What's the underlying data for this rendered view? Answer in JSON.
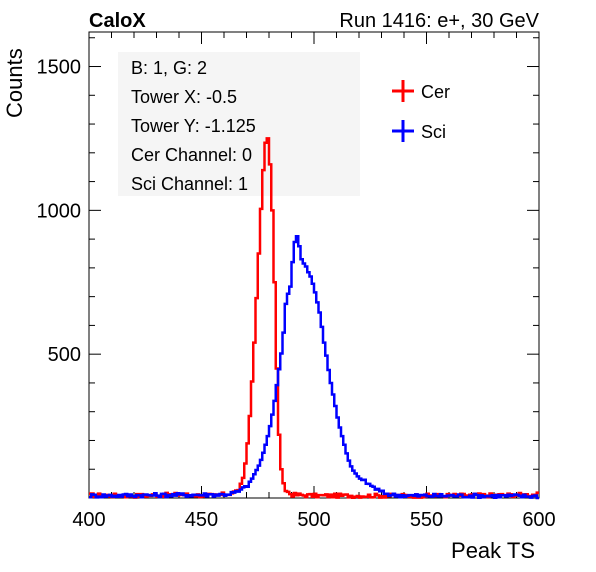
{
  "header": {
    "experiment": "CaloX",
    "run_info": "Run 1416: e+, 30 GeV"
  },
  "info_box": {
    "lines": [
      "B: 1, G: 2",
      "Tower X: -0.5",
      "Tower Y: -1.125",
      "Cer Channel: 0",
      "Sci Channel: 1"
    ]
  },
  "chart_data": {
    "type": "line",
    "style": "histogram-step",
    "xlabel": "Peak TS",
    "ylabel": "Counts",
    "xlim": [
      400,
      600
    ],
    "ylim": [
      0,
      1620
    ],
    "xticks": [
      400,
      450,
      500,
      550,
      600
    ],
    "yticks": [
      500,
      1000,
      1500
    ],
    "grid": false,
    "legend_position": "top-right",
    "bin_width": 1,
    "series": [
      {
        "name": "Cer",
        "color": "#ff0000",
        "points": [
          [
            400,
            10
          ],
          [
            420,
            8
          ],
          [
            440,
            12
          ],
          [
            455,
            8
          ],
          [
            462,
            14
          ],
          [
            466,
            25
          ],
          [
            468,
            50
          ],
          [
            469,
            90
          ],
          [
            470,
            150
          ],
          [
            471,
            230
          ],
          [
            472,
            340
          ],
          [
            473,
            470
          ],
          [
            474,
            610
          ],
          [
            475,
            780
          ],
          [
            476,
            920
          ],
          [
            477,
            1090
          ],
          [
            478,
            1190
          ],
          [
            479,
            1280
          ],
          [
            480,
            1220
          ],
          [
            481,
            1100
          ],
          [
            482,
            900
          ],
          [
            483,
            600
          ],
          [
            484,
            300
          ],
          [
            485,
            140
          ],
          [
            486,
            60
          ],
          [
            487,
            30
          ],
          [
            490,
            12
          ],
          [
            500,
            8
          ],
          [
            520,
            8
          ],
          [
            550,
            8
          ],
          [
            580,
            10
          ],
          [
            600,
            12
          ]
        ]
      },
      {
        "name": "Sci",
        "color": "#0000ff",
        "points": [
          [
            400,
            8
          ],
          [
            430,
            10
          ],
          [
            460,
            12
          ],
          [
            466,
            20
          ],
          [
            470,
            40
          ],
          [
            472,
            60
          ],
          [
            474,
            90
          ],
          [
            476,
            120
          ],
          [
            478,
            170
          ],
          [
            480,
            230
          ],
          [
            482,
            310
          ],
          [
            484,
            420
          ],
          [
            486,
            530
          ],
          [
            487,
            620
          ],
          [
            488,
            730
          ],
          [
            489,
            690
          ],
          [
            490,
            780
          ],
          [
            491,
            860
          ],
          [
            492,
            920
          ],
          [
            493,
            900
          ],
          [
            494,
            850
          ],
          [
            495,
            810
          ],
          [
            496,
            820
          ],
          [
            497,
            790
          ],
          [
            498,
            780
          ],
          [
            499,
            760
          ],
          [
            500,
            730
          ],
          [
            501,
            700
          ],
          [
            502,
            660
          ],
          [
            503,
            630
          ],
          [
            504,
            560
          ],
          [
            505,
            520
          ],
          [
            506,
            470
          ],
          [
            507,
            420
          ],
          [
            508,
            380
          ],
          [
            509,
            340
          ],
          [
            510,
            300
          ],
          [
            511,
            260
          ],
          [
            512,
            230
          ],
          [
            513,
            200
          ],
          [
            514,
            170
          ],
          [
            515,
            140
          ],
          [
            516,
            120
          ],
          [
            517,
            100
          ],
          [
            518,
            90
          ],
          [
            519,
            80
          ],
          [
            520,
            70
          ],
          [
            522,
            60
          ],
          [
            524,
            50
          ],
          [
            526,
            40
          ],
          [
            528,
            30
          ],
          [
            530,
            20
          ],
          [
            535,
            10
          ],
          [
            545,
            8
          ],
          [
            570,
            8
          ],
          [
            600,
            6
          ]
        ]
      }
    ]
  }
}
